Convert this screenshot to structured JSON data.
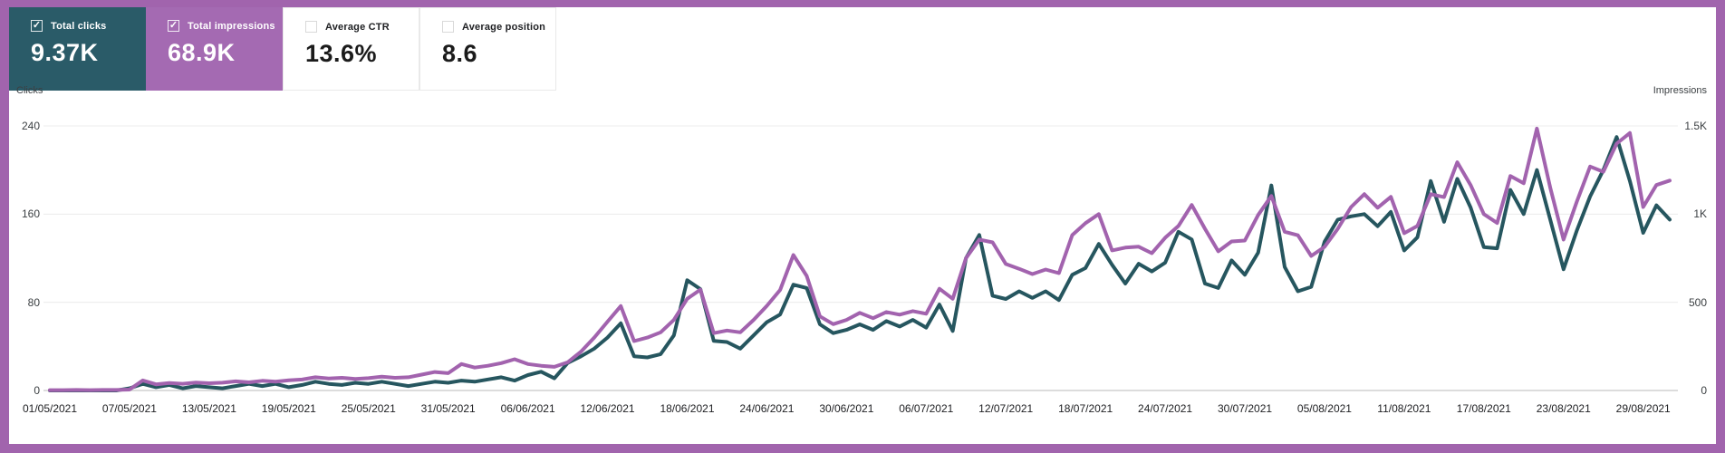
{
  "frame": {
    "border_color": "#a164ad"
  },
  "metric_cards": [
    {
      "id": "total-clicks",
      "label": "Total clicks",
      "value": "9.37K",
      "checked": true,
      "bg": "#2a5b68",
      "text": "#ffffff"
    },
    {
      "id": "total-impressions",
      "label": "Total impressions",
      "value": "68.9K",
      "checked": true,
      "bg": "#a46ab2",
      "text": "#ffffff"
    },
    {
      "id": "average-ctr",
      "label": "Average CTR",
      "value": "13.6%",
      "checked": false,
      "bg": "#ffffff",
      "text": "#1b1b1b"
    },
    {
      "id": "average-position",
      "label": "Average position",
      "value": "8.6",
      "checked": false,
      "bg": "#ffffff",
      "text": "#1b1b1b"
    }
  ],
  "chart_data": {
    "type": "line",
    "grid": true,
    "legend_position": "none",
    "start_date": "01/05/2021",
    "end_date": "31/08/2021",
    "frequency": "daily",
    "left_axis": {
      "label": "Clicks",
      "max": 240,
      "ticks": [
        "240",
        "160",
        "80",
        "0"
      ]
    },
    "right_axis": {
      "label": "Impressions",
      "max": 1500,
      "ticks": [
        "1.5K",
        "1K",
        "500",
        "0"
      ]
    },
    "x_tick_labels": [
      "01/05/2021",
      "07/05/2021",
      "13/05/2021",
      "19/05/2021",
      "25/05/2021",
      "31/05/2021",
      "06/06/2021",
      "12/06/2021",
      "18/06/2021",
      "24/06/2021",
      "30/06/2021",
      "06/07/2021",
      "12/07/2021",
      "18/07/2021",
      "24/07/2021",
      "30/07/2021",
      "05/08/2021",
      "11/08/2021",
      "17/08/2021",
      "23/08/2021",
      "29/08/2021"
    ],
    "series": [
      {
        "name": "Total clicks",
        "axis": "left",
        "color": "#26565f",
        "values": [
          0,
          0,
          0,
          0,
          0,
          0,
          2,
          6,
          3,
          5,
          2,
          4,
          3,
          2,
          4,
          6,
          4,
          6,
          3,
          5,
          8,
          6,
          5,
          7,
          6,
          8,
          6,
          4,
          6,
          8,
          7,
          9,
          8,
          10,
          12,
          9,
          14,
          17,
          11,
          25,
          31,
          38,
          48,
          61,
          31,
          30,
          33,
          50,
          100,
          92,
          45,
          44,
          38,
          50,
          62,
          69,
          96,
          93,
          60,
          52,
          55,
          60,
          55,
          63,
          58,
          64,
          57,
          78,
          54,
          120,
          141,
          86,
          83,
          90,
          84,
          90,
          82,
          105,
          111,
          133,
          114,
          97,
          115,
          108,
          116,
          144,
          137,
          97,
          93,
          118,
          105,
          125,
          186,
          112,
          90,
          94,
          135,
          155,
          158,
          160,
          149,
          162,
          127,
          139,
          190,
          153,
          192,
          166,
          130,
          129,
          182,
          160,
          200,
          155,
          110,
          145,
          176,
          200,
          230,
          190,
          143,
          168,
          155
        ]
      },
      {
        "name": "Total impressions",
        "axis": "right",
        "color": "#a263ae",
        "values": [
          2,
          2,
          3,
          2,
          3,
          3,
          5,
          57,
          35,
          42,
          38,
          45,
          41,
          44,
          52,
          46,
          55,
          50,
          58,
          62,
          75,
          68,
          72,
          65,
          70,
          78,
          72,
          75,
          90,
          105,
          98,
          150,
          130,
          140,
          155,
          177,
          150,
          140,
          134,
          160,
          220,
          300,
          390,
          479,
          280,
          300,
          330,
          400,
          520,
          572,
          325,
          340,
          330,
          400,
          480,
          570,
          768,
          650,
          420,
          376,
          400,
          440,
          410,
          445,
          430,
          450,
          435,
          577,
          520,
          750,
          856,
          840,
          717,
          690,
          660,
          686,
          665,
          881,
          949,
          1000,
          794,
          810,
          815,
          778,
          866,
          933,
          1052,
          917,
          789,
          845,
          850,
          995,
          1103,
          900,
          880,
          763,
          814,
          917,
          1040,
          1113,
          1036,
          1098,
          892,
          933,
          1113,
          1096,
          1294,
          1165,
          1000,
          950,
          1216,
          1175,
          1485,
          1150,
          856,
          1070,
          1270,
          1240,
          1400,
          1460,
          1040,
          1165,
          1190
        ]
      }
    ]
  }
}
